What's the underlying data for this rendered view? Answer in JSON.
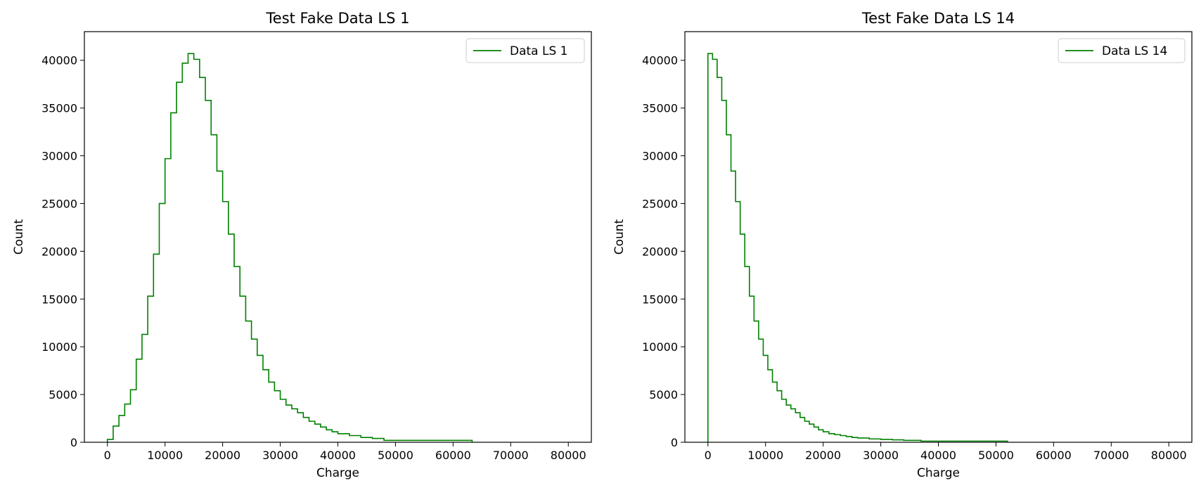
{
  "chart_data": [
    {
      "type": "histogram",
      "title": "Test Fake Data LS 1",
      "xlabel": "Charge",
      "ylabel": "Count",
      "xlim": [
        -4000,
        84000
      ],
      "ylim": [
        0,
        43000
      ],
      "xticks": [
        0,
        10000,
        20000,
        30000,
        40000,
        50000,
        60000,
        70000,
        80000
      ],
      "yticks": [
        0,
        5000,
        10000,
        15000,
        20000,
        25000,
        30000,
        35000,
        40000
      ],
      "grid": false,
      "legend": {
        "position": "top-right",
        "entries": [
          "Data LS 1"
        ]
      },
      "line_color": "#008000",
      "series": [
        {
          "name": "Data LS 1",
          "bin_edges": [
            0,
            1000,
            2000,
            3000,
            4000,
            5000,
            6000,
            7000,
            8000,
            9000,
            10000,
            11000,
            12000,
            13000,
            14000,
            15000,
            16000,
            17000,
            18000,
            19000,
            20000,
            21000,
            22000,
            23000,
            24000,
            25000,
            26000,
            27000,
            28000,
            29000,
            30000,
            31000,
            32000,
            33000,
            34000,
            35000,
            36000,
            37000,
            38000,
            39000,
            40000,
            42000,
            44000,
            46000,
            48000,
            63300
          ],
          "counts": [
            300,
            1700,
            2800,
            4000,
            5500,
            8700,
            11300,
            15300,
            19700,
            25000,
            29700,
            34500,
            37700,
            39700,
            40700,
            40100,
            38200,
            35800,
            32200,
            28400,
            25200,
            21800,
            18400,
            15300,
            12700,
            10800,
            9100,
            7600,
            6300,
            5400,
            4500,
            3900,
            3500,
            3100,
            2600,
            2200,
            1900,
            1600,
            1300,
            1100,
            900,
            700,
            500,
            400,
            200
          ]
        }
      ]
    },
    {
      "type": "histogram",
      "title": "Test Fake Data LS 14",
      "xlabel": "Charge",
      "ylabel": "Count",
      "xlim": [
        -4000,
        84000
      ],
      "ylim": [
        0,
        43000
      ],
      "xticks": [
        0,
        10000,
        20000,
        30000,
        40000,
        50000,
        60000,
        70000,
        80000
      ],
      "yticks": [
        0,
        5000,
        10000,
        15000,
        20000,
        25000,
        30000,
        35000,
        40000
      ],
      "grid": false,
      "legend": {
        "position": "top-right",
        "entries": [
          "Data LS 14"
        ]
      },
      "line_color": "#008000",
      "series": [
        {
          "name": "Data LS 14",
          "bin_edges": [
            0,
            800,
            1600,
            2400,
            3200,
            4000,
            4800,
            5600,
            6400,
            7200,
            8000,
            8800,
            9600,
            10400,
            11200,
            12000,
            12800,
            13600,
            14400,
            15200,
            16000,
            16800,
            17600,
            18400,
            19200,
            20000,
            21000,
            22000,
            23000,
            24000,
            25000,
            26000,
            28000,
            30000,
            32000,
            34000,
            37000,
            52000
          ],
          "counts": [
            40700,
            40100,
            38200,
            35800,
            32200,
            28400,
            25200,
            21800,
            18400,
            15300,
            12700,
            10800,
            9100,
            7600,
            6300,
            5400,
            4500,
            3900,
            3500,
            3100,
            2600,
            2200,
            1900,
            1600,
            1300,
            1100,
            900,
            800,
            700,
            600,
            500,
            450,
            350,
            300,
            250,
            200,
            120
          ]
        }
      ]
    }
  ]
}
